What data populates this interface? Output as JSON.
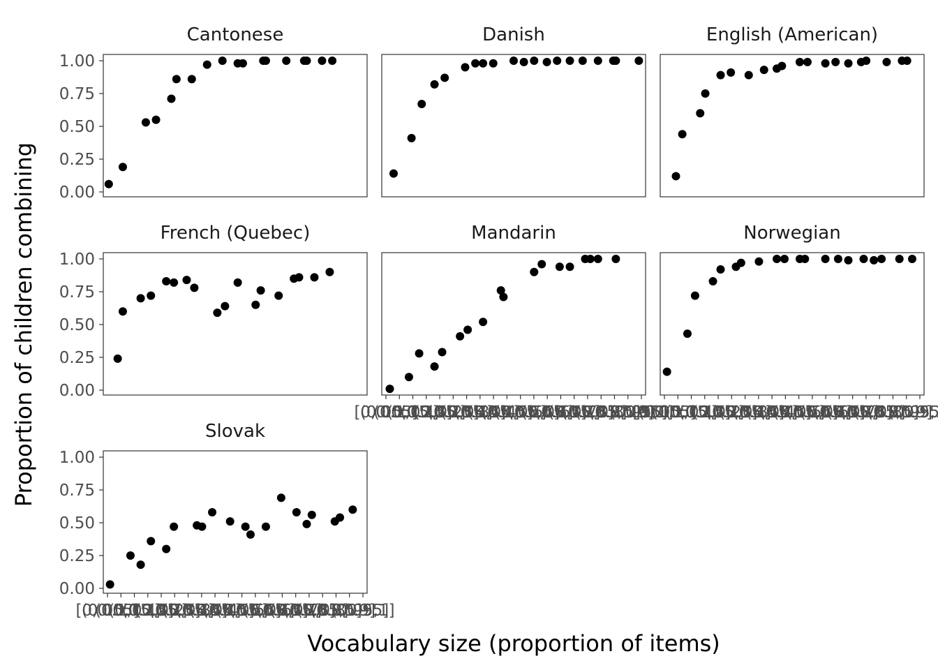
{
  "chart_data": {
    "type": "scatter",
    "xlabel": "Vocabulary size (proportion of items)",
    "ylabel": "Proportion of children combining",
    "ylim": [
      0,
      1
    ],
    "y_ticks": [
      "0.00",
      "0.25",
      "0.50",
      "0.75",
      "1.00"
    ],
    "x_categories": [
      "[0,0.05]",
      "(0.05,0.1]",
      "(0.1,0.15]",
      "(0.15,0.2]",
      "(0.2,0.25]",
      "(0.25,0.3]",
      "(0.3,0.35]",
      "(0.35,0.4]",
      "(0.4,0.45]",
      "(0.45,0.5]",
      "(0.5,0.55]",
      "(0.55,0.6]",
      "(0.6,0.65]",
      "(0.65,0.7]",
      "(0.7,0.75]",
      "(0.75,0.8]",
      "(0.8,0.85]",
      "(0.85,0.9]",
      "(0.9,0.95]",
      "(0.95,1]"
    ],
    "panels": [
      {
        "name": "Cantonese",
        "x": [
          0.005,
          0.06,
          0.15,
          0.19,
          0.25,
          0.27,
          0.33,
          0.39,
          0.45,
          0.51,
          0.53,
          0.61,
          0.62,
          0.7,
          0.77,
          0.78,
          0.84,
          0.88
        ],
        "y": [
          0.06,
          0.19,
          0.53,
          0.55,
          0.71,
          0.86,
          0.86,
          0.97,
          1.0,
          0.98,
          0.98,
          1.0,
          1.0,
          1.0,
          1.0,
          1.0,
          1.0,
          1.0
        ]
      },
      {
        "name": "Danish",
        "x": [
          0.03,
          0.1,
          0.14,
          0.19,
          0.23,
          0.31,
          0.35,
          0.38,
          0.42,
          0.5,
          0.54,
          0.58,
          0.63,
          0.67,
          0.72,
          0.77,
          0.83,
          0.89,
          0.9,
          0.99
        ],
        "y": [
          0.14,
          0.41,
          0.67,
          0.82,
          0.87,
          0.95,
          0.98,
          0.98,
          0.98,
          1.0,
          0.99,
          1.0,
          0.99,
          1.0,
          1.0,
          1.0,
          1.0,
          1.0,
          1.0,
          1.0
        ]
      },
      {
        "name": "English (American)",
        "x": [
          0.045,
          0.07,
          0.14,
          0.16,
          0.22,
          0.26,
          0.33,
          0.39,
          0.44,
          0.46,
          0.53,
          0.56,
          0.63,
          0.67,
          0.72,
          0.77,
          0.79,
          0.87,
          0.93,
          0.95
        ],
        "y": [
          0.12,
          0.44,
          0.6,
          0.75,
          0.89,
          0.91,
          0.89,
          0.93,
          0.94,
          0.96,
          0.99,
          0.99,
          0.98,
          0.99,
          0.98,
          0.99,
          1.0,
          0.99,
          1.0,
          1.0
        ]
      },
      {
        "name": "French (Quebec)",
        "x": [
          0.04,
          0.06,
          0.13,
          0.17,
          0.23,
          0.26,
          0.31,
          0.34,
          0.43,
          0.46,
          0.51,
          0.58,
          0.6,
          0.67,
          0.73,
          0.75,
          0.81,
          0.87
        ],
        "y": [
          0.24,
          0.6,
          0.7,
          0.72,
          0.83,
          0.82,
          0.84,
          0.78,
          0.59,
          0.64,
          0.82,
          0.65,
          0.76,
          0.72,
          0.85,
          0.86,
          0.86,
          0.9
        ]
      },
      {
        "name": "Mandarin",
        "x": [
          0.015,
          0.09,
          0.13,
          0.19,
          0.22,
          0.29,
          0.32,
          0.38,
          0.45,
          0.46,
          0.58,
          0.61,
          0.68,
          0.72,
          0.78,
          0.8,
          0.83,
          0.9
        ],
        "y": [
          0.01,
          0.1,
          0.28,
          0.18,
          0.29,
          0.41,
          0.46,
          0.52,
          0.76,
          0.71,
          0.9,
          0.96,
          0.94,
          0.94,
          1.0,
          1.0,
          1.0,
          1.0
        ]
      },
      {
        "name": "Norwegian",
        "x": [
          0.01,
          0.09,
          0.12,
          0.19,
          0.22,
          0.28,
          0.3,
          0.37,
          0.44,
          0.47,
          0.53,
          0.55,
          0.63,
          0.68,
          0.72,
          0.78,
          0.82,
          0.85,
          0.92,
          0.97
        ],
        "y": [
          0.14,
          0.43,
          0.72,
          0.83,
          0.92,
          0.94,
          0.97,
          0.98,
          1.0,
          1.0,
          1.0,
          1.0,
          1.0,
          1.0,
          0.99,
          1.0,
          0.99,
          1.0,
          1.0,
          1.0
        ]
      },
      {
        "name": "Slovak",
        "x": [
          0.01,
          0.09,
          0.13,
          0.17,
          0.23,
          0.26,
          0.35,
          0.37,
          0.41,
          0.48,
          0.54,
          0.56,
          0.62,
          0.68,
          0.74,
          0.78,
          0.8,
          0.89,
          0.91,
          0.96
        ],
        "y": [
          0.03,
          0.25,
          0.18,
          0.36,
          0.3,
          0.47,
          0.48,
          0.47,
          0.58,
          0.51,
          0.47,
          0.41,
          0.47,
          0.69,
          0.58,
          0.49,
          0.56,
          0.51,
          0.54,
          0.6
        ]
      }
    ]
  }
}
